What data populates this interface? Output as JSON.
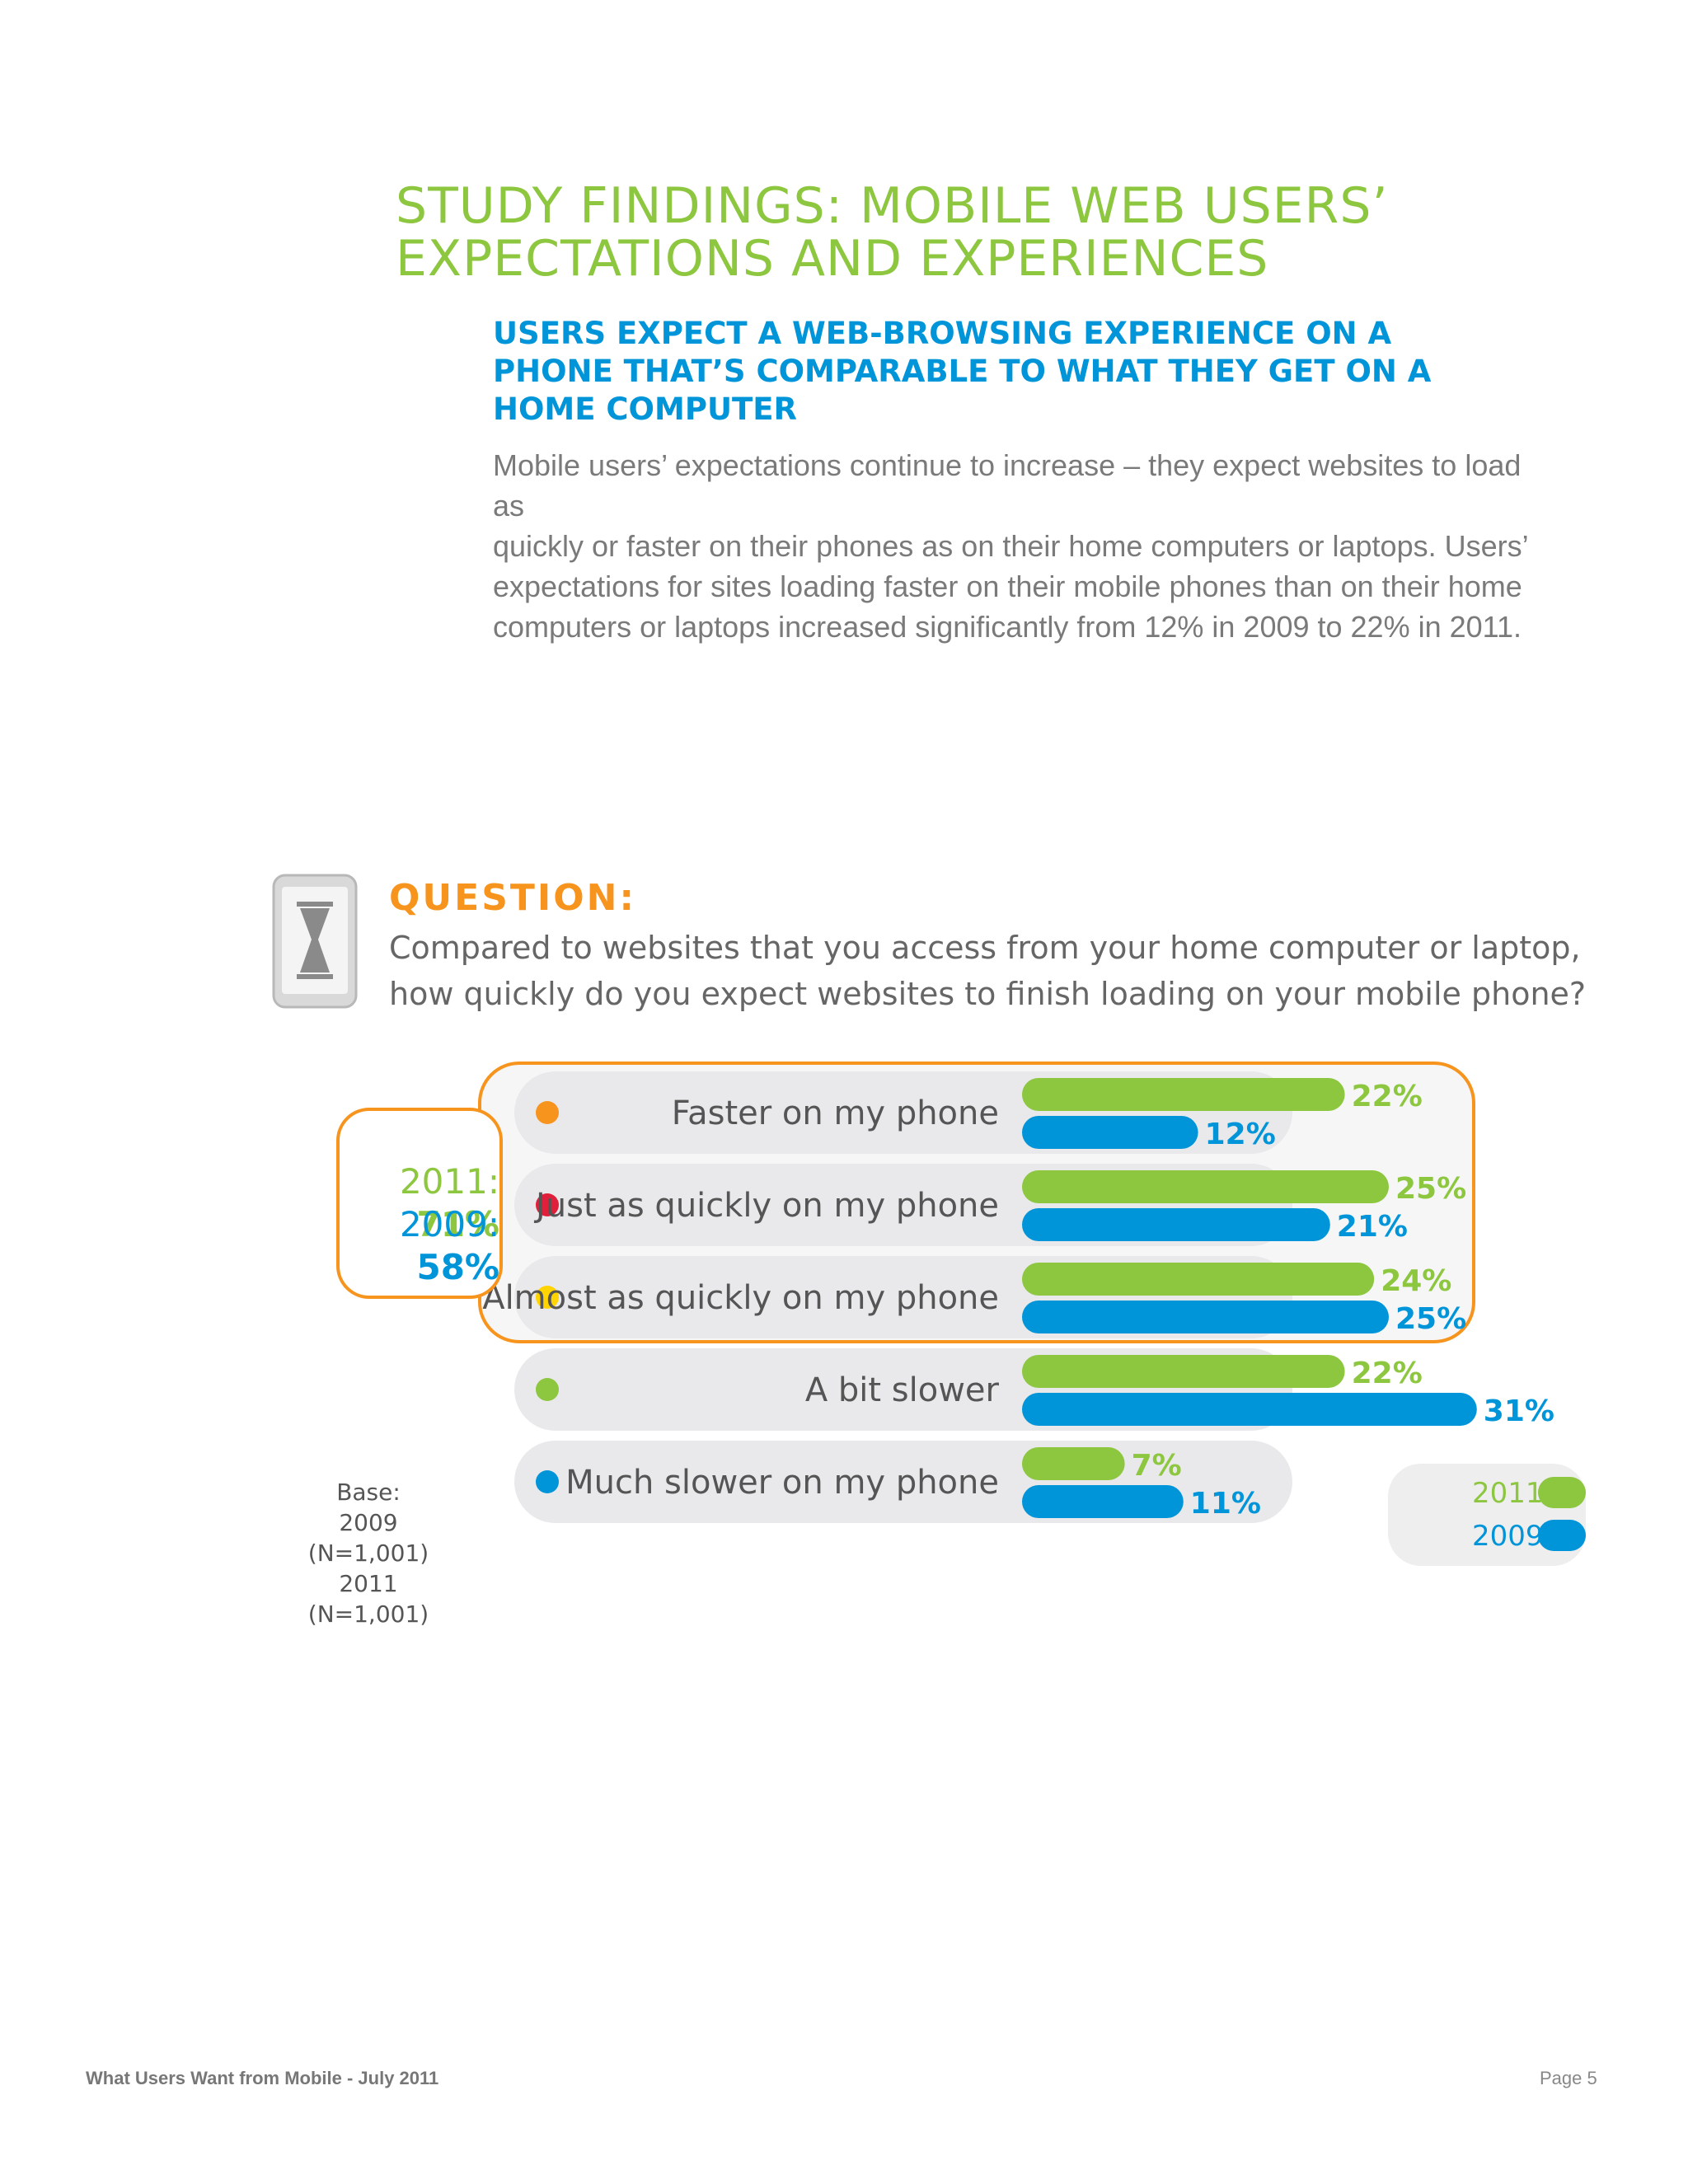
{
  "header": {
    "title_line1": "STUDY FINDINGS: MOBILE WEB USERS’",
    "title_line2": "EXPECTATIONS AND EXPERIENCES",
    "subheading_line1": "USERS EXPECT A WEB-BROWSING EXPERIENCE ON A",
    "subheading_line2": "PHONE THAT’S COMPARABLE TO WHAT THEY GET ON A",
    "subheading_line3": "HOME COMPUTER",
    "paragraph_line1": "Mobile users’ expectations continue to increase – they expect websites to load as",
    "paragraph_line2": "quickly or faster on their phones as on their home computers or laptops. Users’",
    "paragraph_line3": "expectations for sites loading faster on their mobile phones than on their home",
    "paragraph_line4": "computers or laptops increased significantly from 12% in 2009 to 22% in 2011."
  },
  "question": {
    "label": "QUESTION:",
    "line1": "Compared to websites that you access from your home computer or laptop,",
    "line2": "how quickly do you expect websites to finish loading on your mobile phone?"
  },
  "summary": {
    "label_2011": "2011: ",
    "value_2011": "71%",
    "label_2009": "2009: ",
    "value_2009": "58%"
  },
  "base_note": {
    "line1": "Base:",
    "line2": "2009 (N=1,001)",
    "line3": "2011 (N=1,001)"
  },
  "legend": {
    "label_2011": "2011",
    "label_2009": "2009"
  },
  "colors": {
    "green": "#8dc63f",
    "blue": "#0094d9",
    "orange": "#f7941d",
    "row_bg": "#e9e8ea",
    "dot_faster": "#f7941d",
    "dot_just": "#e0203a",
    "dot_almost": "#ffd400",
    "dot_slower": "#8dc63f",
    "dot_much": "#0094d9"
  },
  "footer": {
    "left": "What Users Want from Mobile - July 2011",
    "right": "Page 5"
  },
  "chart_data": {
    "type": "bar",
    "orientation": "horizontal",
    "categories": [
      "Faster on my phone",
      "Just as quickly on my phone",
      "Almost as quickly on my phone",
      "A bit slower",
      "Much slower on my phone"
    ],
    "series": [
      {
        "name": "2011",
        "values": [
          22,
          25,
          24,
          22,
          7
        ]
      },
      {
        "name": "2009",
        "values": [
          12,
          21,
          25,
          31,
          11
        ]
      }
    ],
    "value_labels": {
      "2011": [
        "22%",
        "25%",
        "24%",
        "22%",
        "7%"
      ],
      "2009": [
        "12%",
        "21%",
        "25%",
        "31%",
        "11%"
      ]
    },
    "title": "",
    "xlabel": "",
    "ylabel": "",
    "legend_position": "bottom-right",
    "grid": false
  }
}
